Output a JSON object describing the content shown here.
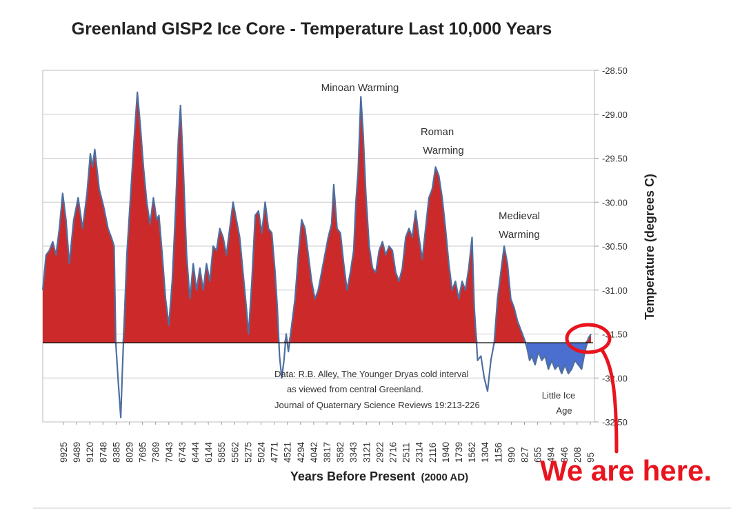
{
  "chart_data": {
    "type": "area",
    "title": "Greenland GISP2 Ice Core - Temperature  Last 10,000 Years",
    "xlabel_main": "Years Before Present",
    "xlabel_paren": "(2000 AD)",
    "ylabel": "Temperature (degrees C)",
    "y_axis_side": "right",
    "ylim": [
      -32.5,
      -28.5
    ],
    "baseline": -31.6,
    "grid": "horizontal",
    "x_tick_labels": [
      "9925",
      "9489",
      "9120",
      "8748",
      "8385",
      "8029",
      "7695",
      "7369",
      "7043",
      "6743",
      "6444",
      "6144",
      "5855",
      "5562",
      "5275",
      "5024",
      "4771",
      "4521",
      "4294",
      "4042",
      "3817",
      "3582",
      "3343",
      "3121",
      "2922",
      "2716",
      "2511",
      "2314",
      "2116",
      "1940",
      "1739",
      "1562",
      "1304",
      "1156",
      "990",
      "827",
      "655",
      "494",
      "346",
      "208",
      "95"
    ],
    "y_tick_labels": [
      "-28.50",
      "-29.00",
      "-29.50",
      "-30.00",
      "-30.50",
      "-31.00",
      "-31.50",
      "-32.00",
      "-32.50"
    ],
    "y_ticks_obscured": [
      "-32.00",
      "-32.50"
    ],
    "warm_fill_color": "#cc2a2a",
    "cold_fill_color": "#4a6fd0",
    "line_color": "#4e6fa0",
    "annotations": {
      "minoan": "Minoan Warming",
      "roman_1": "Roman",
      "roman_2": "Warming",
      "medieval_1": "Medieval",
      "medieval_2": "Warming",
      "little_ice_1": "Little Ice",
      "little_ice_2": "Age",
      "data_line_1": "Data: R.B. Alley,  The Younger Dryas cold interval",
      "data_line_2": "as viewed from central Greenland.",
      "data_line_3": "Journal of Quaternary  Science Reviews 19:213-226"
    },
    "overlay": {
      "text": "We are here.",
      "color": "#e8141e"
    },
    "series": [
      {
        "points": [
          [
            0,
            -31.0
          ],
          [
            0.3,
            -30.6
          ],
          [
            0.6,
            -30.55
          ],
          [
            0.9,
            -30.45
          ],
          [
            1.2,
            -30.6
          ],
          [
            1.5,
            -30.3
          ],
          [
            1.8,
            -29.9
          ],
          [
            2.1,
            -30.2
          ],
          [
            2.4,
            -30.7
          ],
          [
            2.8,
            -30.2
          ],
          [
            3.2,
            -29.95
          ],
          [
            3.6,
            -30.3
          ],
          [
            4.0,
            -29.9
          ],
          [
            4.3,
            -29.45
          ],
          [
            4.5,
            -29.6
          ],
          [
            4.7,
            -29.4
          ],
          [
            5.1,
            -29.85
          ],
          [
            5.5,
            -30.05
          ],
          [
            5.9,
            -30.3
          ],
          [
            6.2,
            -30.4
          ],
          [
            6.45,
            -30.5
          ],
          [
            6.6,
            -31.6
          ],
          [
            6.8,
            -32.0
          ],
          [
            7.05,
            -32.45
          ],
          [
            7.2,
            -31.9
          ],
          [
            7.6,
            -30.6
          ],
          [
            8.0,
            -29.8
          ],
          [
            8.3,
            -29.2
          ],
          [
            8.55,
            -28.75
          ],
          [
            8.8,
            -29.1
          ],
          [
            9.1,
            -29.6
          ],
          [
            9.4,
            -30.0
          ],
          [
            9.7,
            -30.25
          ],
          [
            10.0,
            -29.95
          ],
          [
            10.3,
            -30.2
          ],
          [
            10.5,
            -30.15
          ],
          [
            10.8,
            -30.6
          ],
          [
            11.1,
            -31.1
          ],
          [
            11.4,
            -31.4
          ],
          [
            11.7,
            -30.9
          ],
          [
            12.0,
            -30.1
          ],
          [
            12.25,
            -29.3
          ],
          [
            12.45,
            -28.9
          ],
          [
            12.7,
            -29.6
          ],
          [
            13.0,
            -30.6
          ],
          [
            13.3,
            -31.1
          ],
          [
            13.6,
            -30.7
          ],
          [
            13.9,
            -31.0
          ],
          [
            14.2,
            -30.75
          ],
          [
            14.5,
            -31.0
          ],
          [
            14.8,
            -30.7
          ],
          [
            15.1,
            -30.9
          ],
          [
            15.4,
            -30.5
          ],
          [
            15.7,
            -30.55
          ],
          [
            16.0,
            -30.3
          ],
          [
            16.3,
            -30.4
          ],
          [
            16.6,
            -30.6
          ],
          [
            16.9,
            -30.3
          ],
          [
            17.2,
            -30.0
          ],
          [
            17.5,
            -30.2
          ],
          [
            17.8,
            -30.4
          ],
          [
            18.1,
            -30.8
          ],
          [
            18.4,
            -31.2
          ],
          [
            18.6,
            -31.5
          ],
          [
            18.9,
            -30.9
          ],
          [
            19.2,
            -30.15
          ],
          [
            19.5,
            -30.1
          ],
          [
            19.8,
            -30.35
          ],
          [
            20.1,
            -30.0
          ],
          [
            20.4,
            -30.3
          ],
          [
            20.7,
            -30.35
          ],
          [
            21.0,
            -30.8
          ],
          [
            21.2,
            -31.2
          ],
          [
            21.4,
            -31.75
          ],
          [
            21.6,
            -32.0
          ],
          [
            21.8,
            -31.8
          ],
          [
            22.0,
            -31.5
          ],
          [
            22.2,
            -31.7
          ],
          [
            22.5,
            -31.4
          ],
          [
            22.8,
            -31.1
          ],
          [
            23.1,
            -30.6
          ],
          [
            23.4,
            -30.2
          ],
          [
            23.7,
            -30.3
          ],
          [
            24.0,
            -30.6
          ],
          [
            24.3,
            -30.9
          ],
          [
            24.6,
            -31.1
          ],
          [
            24.9,
            -31.0
          ],
          [
            25.2,
            -30.8
          ],
          [
            25.5,
            -30.6
          ],
          [
            25.8,
            -30.4
          ],
          [
            26.1,
            -30.25
          ],
          [
            26.3,
            -29.8
          ],
          [
            26.6,
            -30.3
          ],
          [
            26.9,
            -30.35
          ],
          [
            27.2,
            -30.7
          ],
          [
            27.5,
            -31.0
          ],
          [
            27.8,
            -30.8
          ],
          [
            28.1,
            -30.55
          ],
          [
            28.3,
            -30.0
          ],
          [
            28.5,
            -29.65
          ],
          [
            28.75,
            -28.8
          ],
          [
            28.95,
            -29.2
          ],
          [
            29.2,
            -29.9
          ],
          [
            29.5,
            -30.5
          ],
          [
            29.8,
            -30.75
          ],
          [
            30.1,
            -30.8
          ],
          [
            30.4,
            -30.55
          ],
          [
            30.7,
            -30.45
          ],
          [
            31.0,
            -30.6
          ],
          [
            31.3,
            -30.5
          ],
          [
            31.6,
            -30.55
          ],
          [
            31.9,
            -30.8
          ],
          [
            32.2,
            -30.9
          ],
          [
            32.5,
            -30.75
          ],
          [
            32.8,
            -30.4
          ],
          [
            33.1,
            -30.3
          ],
          [
            33.4,
            -30.4
          ],
          [
            33.7,
            -30.1
          ],
          [
            34.0,
            -30.4
          ],
          [
            34.3,
            -30.65
          ],
          [
            34.6,
            -30.3
          ],
          [
            34.9,
            -29.95
          ],
          [
            35.2,
            -29.85
          ],
          [
            35.5,
            -29.6
          ],
          [
            35.8,
            -29.7
          ],
          [
            36.1,
            -29.95
          ],
          [
            36.4,
            -30.3
          ],
          [
            36.7,
            -30.7
          ],
          [
            37.0,
            -31.0
          ],
          [
            37.3,
            -30.9
          ],
          [
            37.6,
            -31.1
          ],
          [
            37.9,
            -30.9
          ],
          [
            38.2,
            -31.0
          ],
          [
            38.5,
            -30.75
          ],
          [
            38.8,
            -30.4
          ],
          [
            39.0,
            -31.2
          ],
          [
            39.3,
            -31.8
          ],
          [
            39.6,
            -31.75
          ],
          [
            39.9,
            -32.0
          ],
          [
            40.2,
            -32.15
          ],
          [
            40.5,
            -31.8
          ],
          [
            40.8,
            -31.6
          ],
          [
            41.1,
            -31.1
          ],
          [
            41.4,
            -30.8
          ],
          [
            41.7,
            -30.5
          ],
          [
            42.0,
            -30.7
          ],
          [
            42.3,
            -31.1
          ],
          [
            42.6,
            -31.2
          ],
          [
            42.9,
            -31.35
          ],
          [
            43.2,
            -31.45
          ],
          [
            43.5,
            -31.55
          ],
          [
            43.75,
            -31.65
          ],
          [
            44.0,
            -31.8
          ],
          [
            44.2,
            -31.75
          ],
          [
            44.5,
            -31.85
          ],
          [
            44.8,
            -31.7
          ],
          [
            45.1,
            -31.8
          ],
          [
            45.4,
            -31.75
          ],
          [
            45.7,
            -31.9
          ],
          [
            46.0,
            -31.8
          ],
          [
            46.3,
            -31.9
          ],
          [
            46.6,
            -31.85
          ],
          [
            46.9,
            -31.95
          ],
          [
            47.2,
            -31.85
          ],
          [
            47.5,
            -31.95
          ],
          [
            47.8,
            -31.9
          ],
          [
            48.1,
            -31.8
          ],
          [
            48.4,
            -31.85
          ],
          [
            48.7,
            -31.9
          ],
          [
            49.0,
            -31.7
          ],
          [
            49.3,
            -31.55
          ],
          [
            49.55,
            -31.5
          ]
        ]
      }
    ],
    "x_domain": [
      0,
      49.55
    ]
  }
}
